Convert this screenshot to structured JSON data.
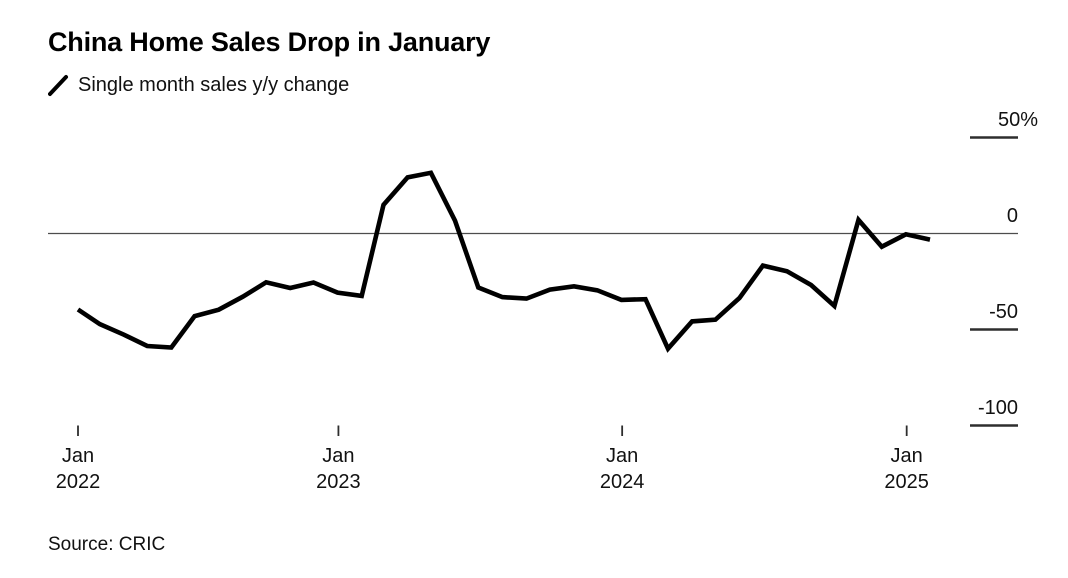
{
  "header": {
    "title": "China Home Sales Drop in January",
    "legend_label": "Single month sales y/y change"
  },
  "footer": {
    "source": "Source: CRIC"
  },
  "chart_data": {
    "type": "line",
    "title": "China Home Sales Drop in January",
    "legend": "Single month sales y/y change",
    "source": "Source: CRIC",
    "unit": "percent y/y change",
    "ylim": [
      -100,
      50
    ],
    "zero_line": true,
    "grid": false,
    "legend_position": "top-left",
    "y_axis_side": "right",
    "line_color": "#000000",
    "y_ticks": [
      {
        "label": "50%",
        "value": 50
      },
      {
        "label": "0",
        "value": 0
      },
      {
        "label": "-50",
        "value": -50
      },
      {
        "label": "-100",
        "value": -100
      }
    ],
    "x_ticks": [
      {
        "month": "Jan",
        "year": "2022"
      },
      {
        "month": "Jan",
        "year": "2023"
      },
      {
        "month": "Jan",
        "year": "2024"
      },
      {
        "month": "Jan",
        "year": "2025"
      }
    ],
    "series": [
      {
        "name": "Single month sales y/y change",
        "color": "#000000",
        "points": [
          {
            "month": "2022-01",
            "value": -39.6
          },
          {
            "month": "2022-02",
            "value": -47.2
          },
          {
            "month": "2022-03",
            "value": -52.7
          },
          {
            "month": "2022-04",
            "value": -58.6
          },
          {
            "month": "2022-05",
            "value": -59.4
          },
          {
            "month": "2022-06",
            "value": -43.0
          },
          {
            "month": "2022-07",
            "value": -39.7
          },
          {
            "month": "2022-08",
            "value": -32.9
          },
          {
            "month": "2022-09",
            "value": -25.4
          },
          {
            "month": "2022-10",
            "value": -28.4
          },
          {
            "month": "2022-11",
            "value": -25.5
          },
          {
            "month": "2022-12",
            "value": -30.8
          },
          {
            "month": "2023-01",
            "value": -32.5
          },
          {
            "month": "2023-02",
            "value": 14.9
          },
          {
            "month": "2023-03",
            "value": 29.2
          },
          {
            "month": "2023-04",
            "value": 31.6
          },
          {
            "month": "2023-05",
            "value": 6.7
          },
          {
            "month": "2023-06",
            "value": -28.1
          },
          {
            "month": "2023-07",
            "value": -33.1
          },
          {
            "month": "2023-08",
            "value": -33.9
          },
          {
            "month": "2023-09",
            "value": -29.2
          },
          {
            "month": "2023-10",
            "value": -27.5
          },
          {
            "month": "2023-11",
            "value": -29.6
          },
          {
            "month": "2023-12",
            "value": -34.6
          },
          {
            "month": "2024-01",
            "value": -34.2
          },
          {
            "month": "2024-02",
            "value": -60.0
          },
          {
            "month": "2024-03",
            "value": -45.8
          },
          {
            "month": "2024-04",
            "value": -44.9
          },
          {
            "month": "2024-05",
            "value": -33.6
          },
          {
            "month": "2024-06",
            "value": -16.7
          },
          {
            "month": "2024-07",
            "value": -19.7
          },
          {
            "month": "2024-08",
            "value": -26.8
          },
          {
            "month": "2024-09",
            "value": -37.7
          },
          {
            "month": "2024-10",
            "value": 7.1
          },
          {
            "month": "2024-11",
            "value": -6.9
          },
          {
            "month": "2024-12",
            "value": -0.4
          },
          {
            "month": "2025-01",
            "value": -3.2
          }
        ]
      }
    ]
  }
}
